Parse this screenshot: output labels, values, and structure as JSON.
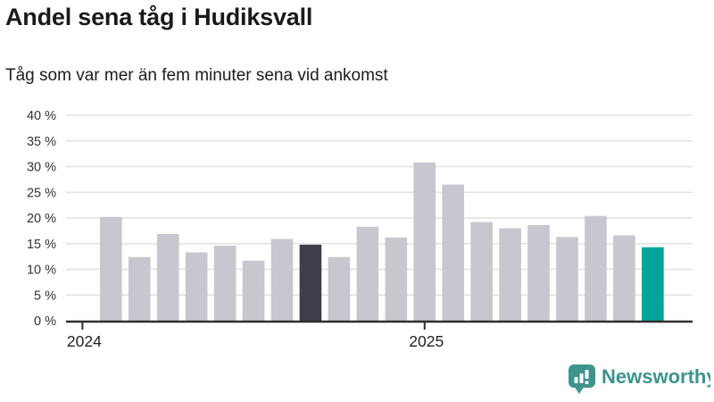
{
  "header": {
    "title": "Andel sena tåg i Hudiksvall",
    "subtitle": "Tåg som var mer än fem minuter sena vid ankomst"
  },
  "chart_data": {
    "type": "bar",
    "title": "Andel sena tåg i Hudiksvall",
    "subtitle": "Tåg som var mer än fem minuter sena vid ankomst",
    "unit": "%",
    "categories": [
      "2024-02",
      "2024-03",
      "2024-04",
      "2024-05",
      "2024-06",
      "2024-07",
      "2024-08",
      "2024-09",
      "2024-10",
      "2024-11",
      "2024-12",
      "2025-01",
      "2025-02",
      "2025-03",
      "2025-04",
      "2025-05",
      "2025-06",
      "2025-07",
      "2025-08",
      "2025-09"
    ],
    "values": [
      20.2,
      12.4,
      16.9,
      13.3,
      14.6,
      11.7,
      15.9,
      14.8,
      12.4,
      18.3,
      16.2,
      30.8,
      26.5,
      19.2,
      18.0,
      18.6,
      16.3,
      20.4,
      16.6,
      14.3
    ],
    "highlight_dark_index": 7,
    "highlight_accent_index": 19,
    "colors": {
      "bar_default": "#c7c7cf",
      "bar_dark": "#3f3e4b",
      "bar_accent": "#00a49b",
      "gridline": "#e2e2e2",
      "axis": "#2f2f2f",
      "tick_label": "#333333"
    },
    "ylim": [
      0,
      40
    ],
    "ytick_step": 5,
    "ytick_suffix": " %",
    "ytick_labels": [
      "0 %",
      "5 %",
      "10 %",
      "15 %",
      "20 %",
      "25 %",
      "30 %",
      "35 %",
      "40 %"
    ],
    "x_ticks": [
      {
        "label": "2024",
        "slot": -1
      },
      {
        "label": "2025",
        "slot": 11
      }
    ],
    "grid": true,
    "legend": "none"
  },
  "footer": {
    "brand": "Newsworthy",
    "brand_color": "#3e948c"
  }
}
